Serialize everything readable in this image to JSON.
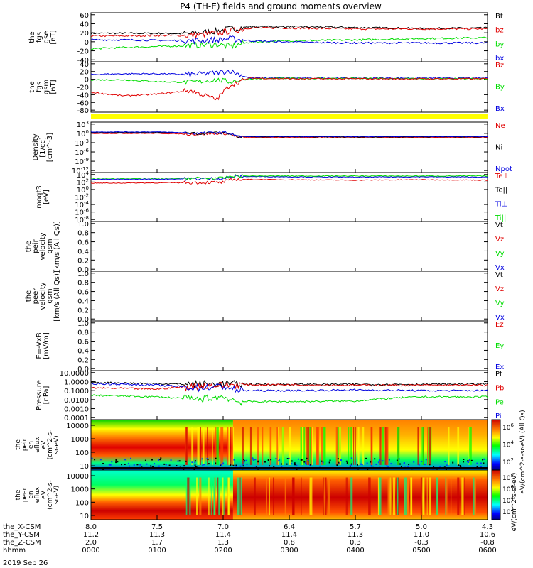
{
  "title": "P4 (TH-E) fields and ground moments overview",
  "footer_date": "2019 Sep 26",
  "colors": {
    "black": "#000000",
    "red": "#e00000",
    "green": "#00dd00",
    "blue": "#0000e0",
    "yellow": "#ffff00"
  },
  "chart_data": [
    {
      "type": "line",
      "panel": "fgs_gse",
      "ylabel": [
        "the",
        "fgs",
        "gse",
        "[nT]"
      ],
      "yticks": [
        "60",
        "40",
        "20",
        "0",
        "-20",
        "-40"
      ],
      "ylim": [
        -40,
        62
      ],
      "legend": [
        {
          "name": "Bt",
          "color": "#000000"
        },
        {
          "name": "bz",
          "color": "#e00000"
        },
        {
          "name": "by",
          "color": "#00dd00"
        },
        {
          "name": "bx",
          "color": "#0000e0"
        }
      ],
      "series": [
        {
          "name": "Bt",
          "x": [
            0,
            0.5,
            1,
            1.5,
            1.9,
            2.1,
            2.4,
            3,
            4,
            5,
            6
          ],
          "y": [
            20,
            20,
            20,
            19,
            25,
            30,
            35,
            35,
            33,
            31,
            32
          ]
        },
        {
          "name": "bz",
          "x": [
            0,
            0.5,
            1,
            1.5,
            1.9,
            2.1,
            2.4,
            3,
            4,
            5,
            6
          ],
          "y": [
            14,
            14,
            15,
            15,
            20,
            25,
            32,
            32,
            30,
            30,
            30
          ]
        },
        {
          "name": "by",
          "x": [
            0,
            0.5,
            1,
            1.5,
            1.9,
            2.1,
            2.4,
            3,
            4,
            5,
            6
          ],
          "y": [
            -15,
            -12,
            -10,
            -8,
            -5,
            -10,
            0,
            3,
            5,
            8,
            10
          ]
        },
        {
          "name": "bx",
          "x": [
            0,
            0.5,
            1,
            1.5,
            1.9,
            2.1,
            2.4,
            3,
            4,
            5,
            6
          ],
          "y": [
            5,
            5,
            4,
            3,
            5,
            8,
            3,
            0,
            -2,
            -2,
            -2
          ]
        }
      ]
    },
    {
      "type": "line",
      "panel": "fgs_gsm",
      "ylabel": [
        "the",
        "fgs",
        "gsm",
        "[nT]"
      ],
      "yticks": [
        "40",
        "20",
        "0",
        "-20",
        "-40",
        "-60",
        "-80"
      ],
      "ylim": [
        -90,
        40
      ],
      "legend": [
        {
          "name": "Bz",
          "color": "#e00000"
        },
        {
          "name": "By",
          "color": "#00dd00"
        },
        {
          "name": "Bx",
          "color": "#0000e0"
        }
      ],
      "series": [
        {
          "name": "Bx",
          "x": [
            0,
            0.5,
            1,
            1.5,
            1.9,
            2.1,
            2.4,
            3,
            4,
            5,
            6
          ],
          "y": [
            10,
            12,
            12,
            10,
            15,
            20,
            0,
            0,
            0,
            0,
            0
          ]
        },
        {
          "name": "By",
          "x": [
            0,
            0.5,
            1,
            1.5,
            1.9,
            2.1,
            2.4,
            3,
            4,
            5,
            6
          ],
          "y": [
            -5,
            -5,
            -10,
            -12,
            -5,
            -10,
            -2,
            -1,
            -1,
            -2,
            -2
          ]
        },
        {
          "name": "Bz",
          "x": [
            0,
            0.5,
            1,
            1.5,
            1.9,
            2.1,
            2.4,
            3,
            4,
            5,
            6
          ],
          "y": [
            -40,
            -50,
            -45,
            -35,
            -60,
            -20,
            0,
            -2,
            -2,
            -2,
            -2
          ]
        }
      ]
    },
    {
      "type": "line",
      "panel": "density",
      "ylabel": [
        "Density",
        "[1/cc]",
        "[cm^-3]"
      ],
      "yscale": "log",
      "yticks": [
        "10^3",
        "10^0",
        "10^-3",
        "10^-6",
        "10^-9",
        "10^-12"
      ],
      "legend": [
        {
          "name": "Ne",
          "color": "#e00000"
        },
        {
          "name": "Ni",
          "color": "#000000"
        },
        {
          "name": "Npot",
          "color": "#0000e0"
        }
      ],
      "series": [
        {
          "name": "Ne",
          "x": [
            0,
            1,
            1.6,
            2.0,
            2.2,
            3,
            4,
            5,
            6
          ],
          "y": [
            1,
            1,
            0.5,
            1,
            0.05,
            0.05,
            0.04,
            0.05,
            0.05
          ]
        },
        {
          "name": "Ni",
          "x": [
            0,
            1,
            1.6,
            2.0,
            2.2,
            3,
            4,
            5,
            6
          ],
          "y": [
            2,
            2,
            0.8,
            1.5,
            0.08,
            0.08,
            0.07,
            0.08,
            0.08
          ]
        },
        {
          "name": "Npot",
          "x": [
            0,
            1,
            1.6,
            2.0,
            2.2,
            3,
            4,
            5,
            6
          ],
          "y": [
            3,
            3,
            1,
            2,
            0.1,
            0.1,
            0.1,
            0.1,
            0.1
          ]
        }
      ]
    },
    {
      "type": "line",
      "panel": "temperature",
      "ylabel": [
        "moqt3",
        "[eV]"
      ],
      "yscale": "log",
      "yticks": [
        "10^4",
        "10^2",
        "10^0",
        "10^-2",
        "10^-4",
        "10^-6",
        "10^-8"
      ],
      "legend": [
        {
          "name": "Te⊥",
          "color": "#e00000"
        },
        {
          "name": "Te||",
          "color": "#000000"
        },
        {
          "name": "Ti⊥",
          "color": "#0000e0"
        },
        {
          "name": "Ti||",
          "color": "#00dd00"
        }
      ],
      "series": [
        {
          "name": "Te⊥",
          "x": [
            0,
            1,
            2.0,
            2.2,
            3,
            4,
            5,
            6
          ],
          "y": [
            50,
            60,
            80,
            500,
            400,
            300,
            400,
            300
          ]
        },
        {
          "name": "Ti⊥",
          "x": [
            0,
            1,
            2.0,
            2.2,
            3,
            4,
            5,
            6
          ],
          "y": [
            500,
            600,
            800,
            3000,
            2500,
            2000,
            2500,
            2000
          ]
        },
        {
          "name": "Ti||",
          "x": [
            0,
            1,
            2.0,
            2.2,
            3,
            4,
            5,
            6
          ],
          "y": [
            1000,
            1000,
            1000,
            4000,
            4000,
            4000,
            4000,
            4000
          ]
        }
      ]
    },
    {
      "type": "line",
      "panel": "peir_velocity",
      "ylabel": [
        "the",
        "peir",
        "velocity",
        "gsm",
        "[km/s (All Qs)]"
      ],
      "yticks": [
        "1.0",
        "0.8",
        "0.6",
        "0.4",
        "0.2",
        "0.0"
      ],
      "ylim": [
        0,
        1
      ],
      "legend": [
        {
          "name": "Vt",
          "color": "#000000"
        },
        {
          "name": "Vz",
          "color": "#e00000"
        },
        {
          "name": "Vy",
          "color": "#00dd00"
        },
        {
          "name": "Vx",
          "color": "#0000e0"
        }
      ],
      "series": []
    },
    {
      "type": "line",
      "panel": "peer_velocity",
      "ylabel": [
        "the",
        "peer",
        "velocity",
        "gsm",
        "[km/s (All Qs)]"
      ],
      "yticks": [
        "1.0",
        "0.8",
        "0.6",
        "0.4",
        "0.2",
        "0.0"
      ],
      "ylim": [
        0,
        1
      ],
      "legend": [
        {
          "name": "Vt",
          "color": "#000000"
        },
        {
          "name": "Vz",
          "color": "#e00000"
        },
        {
          "name": "Vy",
          "color": "#00dd00"
        },
        {
          "name": "Vx",
          "color": "#0000e0"
        }
      ],
      "series": []
    },
    {
      "type": "line",
      "panel": "efield",
      "ylabel": [
        "E=-VxB",
        "[mV/m]"
      ],
      "yticks": [
        "1.0",
        "0.8",
        "0.6",
        "0.4",
        "0.2",
        "0.0"
      ],
      "ylim": [
        0,
        1
      ],
      "legend": [
        {
          "name": "Ez",
          "color": "#e00000"
        },
        {
          "name": "Ey",
          "color": "#00dd00"
        },
        {
          "name": "Ex",
          "color": "#0000e0"
        }
      ],
      "series": []
    },
    {
      "type": "line",
      "panel": "pressure",
      "ylabel": [
        "Pressure",
        "[nPa]"
      ],
      "yscale": "log",
      "yticks": [
        "10.0000",
        "1.0000",
        "0.1000",
        "0.0100",
        "0.0010",
        "0.0001"
      ],
      "legend": [
        {
          "name": "Pt",
          "color": "#000000"
        },
        {
          "name": "Pb",
          "color": "#e00000"
        },
        {
          "name": "Pe",
          "color": "#00dd00"
        },
        {
          "name": "Pi",
          "color": "#0000e0"
        }
      ],
      "series": [
        {
          "name": "Pt",
          "x": [
            0,
            1,
            1.6,
            2.0,
            2.2,
            3,
            4,
            5,
            6
          ],
          "y": [
            0.8,
            0.6,
            0.5,
            0.6,
            0.5,
            0.5,
            0.5,
            0.5,
            0.55
          ]
        },
        {
          "name": "Pb",
          "x": [
            0,
            1,
            1.6,
            2.0,
            2.2,
            3,
            4,
            5,
            6
          ],
          "y": [
            0.2,
            0.15,
            0.3,
            0.4,
            0.45,
            0.45,
            0.4,
            0.4,
            0.4
          ]
        },
        {
          "name": "Pe",
          "x": [
            0,
            1,
            1.6,
            2.0,
            2.2,
            3,
            4,
            5,
            6
          ],
          "y": [
            0.03,
            0.02,
            0.01,
            0.02,
            0.006,
            0.006,
            0.007,
            0.02,
            0.02
          ]
        },
        {
          "name": "Pi",
          "x": [
            0,
            1,
            1.6,
            2.0,
            2.2,
            3,
            4,
            5,
            6
          ],
          "y": [
            0.6,
            0.4,
            0.2,
            0.3,
            0.1,
            0.1,
            0.12,
            0.1,
            0.1
          ]
        }
      ]
    },
    {
      "type": "heatmap",
      "panel": "peir_spectrogram",
      "ylabel": [
        "the",
        "peir",
        "en",
        "eflux",
        "eV",
        "(cm^2-s-",
        "sr-eV)"
      ],
      "yscale": "log",
      "yticks": [
        "10000",
        "1000",
        "100",
        "10"
      ],
      "colorbar_ticks": [
        "10^6",
        "10^4",
        "10^2"
      ],
      "colorbar_label": "eV/(cm^2-s-sr-eV) (All Qs)"
    },
    {
      "type": "heatmap",
      "panel": "peer_spectrogram",
      "ylabel": [
        "the",
        "peer",
        "en",
        "eflux",
        "eV",
        "(cm^2-s-",
        "sr-eV)"
      ],
      "yscale": "log",
      "yticks": [
        "10000",
        "1000",
        "100",
        "10"
      ],
      "colorbar_ticks": [
        "10^8",
        "10^6",
        "10^4",
        "10^2"
      ],
      "colorbar_label": "eV/(cm^2-s-sr-eV)"
    }
  ],
  "xaxis": {
    "rows": [
      {
        "label": "the_X-CSM",
        "values": [
          "8.0",
          "7.5",
          "7.0",
          "6.4",
          "5.7",
          "5.0",
          "4.3"
        ]
      },
      {
        "label": "the_Y-CSM",
        "values": [
          "11.2",
          "11.3",
          "11.4",
          "11.4",
          "11.3",
          "11.0",
          "10.6"
        ]
      },
      {
        "label": "the_Z-CSM",
        "values": [
          "2.0",
          "1.7",
          "1.3",
          "0.8",
          "0.3",
          "-0.3",
          "-0.8"
        ]
      },
      {
        "label": "hhmm",
        "values": [
          "0000",
          "0100",
          "0200",
          "0300",
          "0400",
          "0500",
          "0600"
        ]
      }
    ]
  }
}
